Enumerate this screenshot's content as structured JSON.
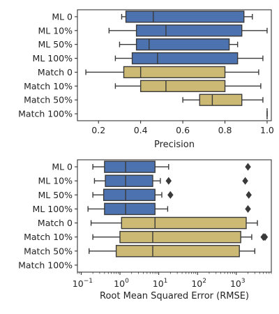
{
  "chart_data": [
    {
      "type": "boxplot",
      "orientation": "horizontal",
      "xlabel": "Precision",
      "xscale": "linear",
      "xlim": [
        0.1,
        1.02
      ],
      "xticks": [
        0.2,
        0.4,
        0.6,
        0.8,
        1.0
      ],
      "xtick_labels": [
        "0.2",
        "0.4",
        "0.6",
        "0.8",
        "1.0"
      ],
      "categories": [
        "ML 0",
        "ML 10%",
        "ML 50%",
        "ML 100%",
        "Match 0",
        "Match 10%",
        "Match 50%",
        "Match 100%"
      ],
      "colors": {
        "ML": "#4c72b0",
        "Match": "#ccb974"
      },
      "boxes": [
        {
          "category": "ML 0",
          "group": "ML",
          "whislo": 0.31,
          "q1": 0.33,
          "med": 0.46,
          "q3": 0.89,
          "whishi": 0.93,
          "fliers": []
        },
        {
          "category": "ML 10%",
          "group": "ML",
          "whislo": 0.25,
          "q1": 0.38,
          "med": 0.52,
          "q3": 0.88,
          "whishi": 1.0,
          "fliers": []
        },
        {
          "category": "ML 50%",
          "group": "ML",
          "whislo": 0.3,
          "q1": 0.38,
          "med": 0.44,
          "q3": 0.82,
          "whishi": 0.86,
          "fliers": []
        },
        {
          "category": "ML 100%",
          "group": "ML",
          "whislo": 0.28,
          "q1": 0.36,
          "med": 0.48,
          "q3": 0.86,
          "whishi": 0.98,
          "fliers": []
        },
        {
          "category": "Match 0",
          "group": "Match",
          "whislo": 0.14,
          "q1": 0.32,
          "med": 0.4,
          "q3": 0.8,
          "whishi": 0.96,
          "fliers": []
        },
        {
          "category": "Match 10%",
          "group": "Match",
          "whislo": 0.28,
          "q1": 0.4,
          "med": 0.52,
          "q3": 0.8,
          "whishi": 0.97,
          "fliers": []
        },
        {
          "category": "Match 50%",
          "group": "Match",
          "whislo": 0.6,
          "q1": 0.68,
          "med": 0.74,
          "q3": 0.88,
          "whishi": 0.98,
          "fliers": []
        },
        {
          "category": "Match 100%",
          "group": "Match",
          "whislo": 1.0,
          "q1": 1.0,
          "med": 1.0,
          "q3": 1.0,
          "whishi": 1.0,
          "fliers": []
        }
      ]
    },
    {
      "type": "boxplot",
      "orientation": "horizontal",
      "xlabel": "Root Mean Squared Error (RMSE)",
      "xscale": "log",
      "xlim": [
        0.08,
        8000
      ],
      "xticks": [
        0.1,
        1,
        10,
        100,
        1000
      ],
      "xtick_labels": [
        {
          "base": "10",
          "exp": "−1"
        },
        {
          "base": "10",
          "exp": "0"
        },
        {
          "base": "10",
          "exp": "1"
        },
        {
          "base": "10",
          "exp": "2"
        },
        {
          "base": "10",
          "exp": "3"
        }
      ],
      "categories": [
        "ML 0",
        "ML 10%",
        "ML 50%",
        "ML 100%",
        "Match 0",
        "Match 10%",
        "Match 50%",
        "Match 100%"
      ],
      "colors": {
        "ML": "#4c72b0",
        "Match": "#ccb974"
      },
      "boxes": [
        {
          "category": "ML 0",
          "group": "ML",
          "whislo": 0.2,
          "q1": 0.4,
          "med": 1.4,
          "q3": 8.0,
          "whishi": 18,
          "fliers": [
            2000
          ]
        },
        {
          "category": "ML 10%",
          "group": "ML",
          "whislo": 0.22,
          "q1": 0.42,
          "med": 1.4,
          "q3": 7.0,
          "whishi": 11,
          "fliers": [
            18,
            1700
          ]
        },
        {
          "category": "ML 50%",
          "group": "ML",
          "whislo": 0.2,
          "q1": 0.38,
          "med": 1.4,
          "q3": 8.0,
          "whishi": 12,
          "fliers": [
            20,
            2100
          ]
        },
        {
          "category": "ML 100%",
          "group": "ML",
          "whislo": 0.15,
          "q1": 0.4,
          "med": 1.4,
          "q3": 8.0,
          "whishi": 17,
          "fliers": [
            2000
          ]
        },
        {
          "category": "Match 0",
          "group": "Match",
          "whislo": 0.18,
          "q1": 1.1,
          "med": 8.0,
          "q3": 1800,
          "whishi": 3500,
          "fliers": []
        },
        {
          "category": "Match 10%",
          "group": "Match",
          "whislo": 0.2,
          "q1": 1.0,
          "med": 7.0,
          "q3": 1300,
          "whishi": 2500,
          "fliers": [
            5000,
            5500
          ]
        },
        {
          "category": "Match 50%",
          "group": "Match",
          "whislo": 0.16,
          "q1": 0.8,
          "med": 7.0,
          "q3": 1200,
          "whishi": 3000,
          "fliers": []
        },
        {
          "category": "Match 100%",
          "group": "Match",
          "whislo": null,
          "q1": null,
          "med": null,
          "q3": null,
          "whishi": null,
          "fliers": []
        }
      ]
    }
  ]
}
